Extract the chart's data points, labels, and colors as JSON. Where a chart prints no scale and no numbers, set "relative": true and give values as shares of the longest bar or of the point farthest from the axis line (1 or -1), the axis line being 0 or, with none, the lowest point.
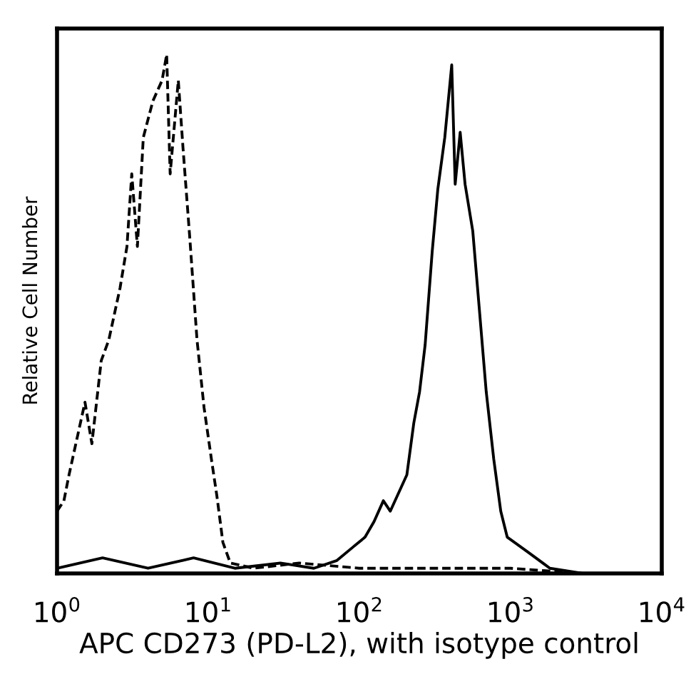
{
  "chart_data": {
    "type": "line",
    "relative": true,
    "xlabel": "APC CD273 (PD-L2), with isotype control",
    "ylabel": "Relative Cell Number",
    "log": "x",
    "xlim": [
      1,
      10000
    ],
    "xticks": [
      {
        "value": 1,
        "label": "10$^{0}$"
      },
      {
        "value": 10,
        "label": "10$^{1}$"
      },
      {
        "value": 100,
        "label": "10$^{2}$"
      },
      {
        "value": 1000,
        "label": "10$^{3}$"
      },
      {
        "value": 10000,
        "label": "10$^{4}$"
      }
    ],
    "tick_labels": "x",
    "grid": false,
    "legend": false,
    "marker": "none",
    "series": [
      {
        "color": "#000000",
        "line_style": "dashed",
        "x": [
          1,
          1.11,
          1.2,
          1.53,
          1.7,
          1.96,
          2.2,
          2.61,
          2.9,
          3.12,
          3.4,
          3.72,
          4.3,
          4.95,
          5.31,
          5.6,
          6.34,
          6.81,
          7.58,
          8.43,
          9.38,
          10.5,
          11.4,
          12.5,
          14,
          20,
          40,
          100,
          300,
          1000,
          3000
        ],
        "values": [
          0.12,
          0.14,
          0.19,
          0.33,
          0.25,
          0.41,
          0.45,
          0.55,
          0.63,
          0.77,
          0.63,
          0.84,
          0.91,
          0.95,
          1.0,
          0.77,
          0.95,
          0.82,
          0.64,
          0.45,
          0.32,
          0.22,
          0.15,
          0.06,
          0.02,
          0.01,
          0.02,
          0.01,
          0.01,
          0.01,
          0.0
        ]
      },
      {
        "color": "#000000",
        "line_style": "solid",
        "x": [
          1,
          2,
          4,
          8,
          15,
          30,
          50,
          71,
          90,
          109,
          125,
          144,
          160,
          206,
          229,
          250,
          272,
          303,
          330,
          367,
          408,
          430,
          464,
          500,
          562,
          625,
          690,
          774,
          861,
          950,
          1318,
          1820,
          3000,
          10000
        ],
        "values": [
          0.01,
          0.03,
          0.01,
          0.03,
          0.01,
          0.02,
          0.01,
          0.025,
          0.05,
          0.07,
          0.1,
          0.14,
          0.12,
          0.19,
          0.29,
          0.35,
          0.44,
          0.62,
          0.74,
          0.84,
          0.98,
          0.75,
          0.85,
          0.75,
          0.66,
          0.5,
          0.35,
          0.22,
          0.12,
          0.07,
          0.04,
          0.01,
          0.0,
          0.0
        ]
      }
    ]
  }
}
